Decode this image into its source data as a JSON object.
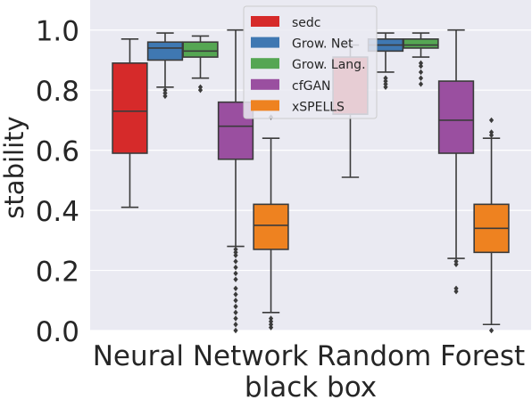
{
  "chart_data": {
    "type": "box",
    "xlabel": "black box",
    "ylabel": "stability",
    "ylim": [
      0.0,
      1.1
    ],
    "yticks": [
      "0.0",
      "0.2",
      "0.4",
      "0.6",
      "0.8",
      "1.0"
    ],
    "ytick_values": [
      0.0,
      0.2,
      0.4,
      0.6,
      0.8,
      1.0
    ],
    "grid": true,
    "legend_position": "top-center",
    "categories": [
      "Neural Network",
      "Random Forest"
    ],
    "series": [
      {
        "name": "sedc",
        "color": "#d62a2a",
        "boxes": [
          {
            "whisker_low": 0.41,
            "q1": 0.59,
            "median": 0.73,
            "q3": 0.89,
            "whisker_high": 0.97,
            "outliers": []
          },
          {
            "whisker_low": 0.51,
            "q1": 0.72,
            "median": 0.72,
            "q3": 0.91,
            "whisker_high": 0.95,
            "outliers": []
          }
        ]
      },
      {
        "name": "Grow. Net",
        "color": "#3f78b2",
        "boxes": [
          {
            "whisker_low": 0.81,
            "q1": 0.9,
            "median": 0.94,
            "q3": 0.96,
            "whisker_high": 0.99,
            "outliers": [
              0.78,
              0.79,
              0.8
            ]
          },
          {
            "whisker_low": 0.86,
            "q1": 0.93,
            "median": 0.95,
            "q3": 0.97,
            "whisker_high": 0.99,
            "outliers": [
              0.81,
              0.82,
              0.83,
              0.84
            ]
          }
        ]
      },
      {
        "name": "Grow. Lang.",
        "color": "#55a653",
        "boxes": [
          {
            "whisker_low": 0.84,
            "q1": 0.91,
            "median": 0.93,
            "q3": 0.96,
            "whisker_high": 0.98,
            "outliers": [
              0.8,
              0.81
            ]
          },
          {
            "whisker_low": 0.91,
            "q1": 0.94,
            "median": 0.95,
            "q3": 0.97,
            "whisker_high": 0.99,
            "outliers": [
              0.82,
              0.84,
              0.86,
              0.88,
              0.89
            ]
          }
        ]
      },
      {
        "name": "cfGAN",
        "color": "#9a4fa0",
        "boxes": [
          {
            "whisker_low": 0.28,
            "q1": 0.57,
            "median": 0.68,
            "q3": 0.76,
            "whisker_high": 1.0,
            "outliers": [
              0.0,
              0.02,
              0.04,
              0.06,
              0.08,
              0.1,
              0.12,
              0.14,
              0.17,
              0.19,
              0.21,
              0.23,
              0.25,
              0.26,
              0.27
            ]
          },
          {
            "whisker_low": 0.24,
            "q1": 0.59,
            "median": 0.7,
            "q3": 0.83,
            "whisker_high": 1.0,
            "outliers": [
              0.13,
              0.14,
              0.22,
              0.23
            ]
          }
        ]
      },
      {
        "name": "xSPELLS",
        "color": "#ee8220",
        "boxes": [
          {
            "whisker_low": 0.06,
            "q1": 0.27,
            "median": 0.35,
            "q3": 0.42,
            "whisker_high": 0.64,
            "outliers": [
              0.01,
              0.02,
              0.03,
              0.04,
              0.71
            ]
          },
          {
            "whisker_low": 0.02,
            "q1": 0.26,
            "median": 0.34,
            "q3": 0.42,
            "whisker_high": 0.64,
            "outliers": [
              0.0,
              0.65,
              0.66,
              0.7
            ]
          }
        ]
      }
    ]
  }
}
